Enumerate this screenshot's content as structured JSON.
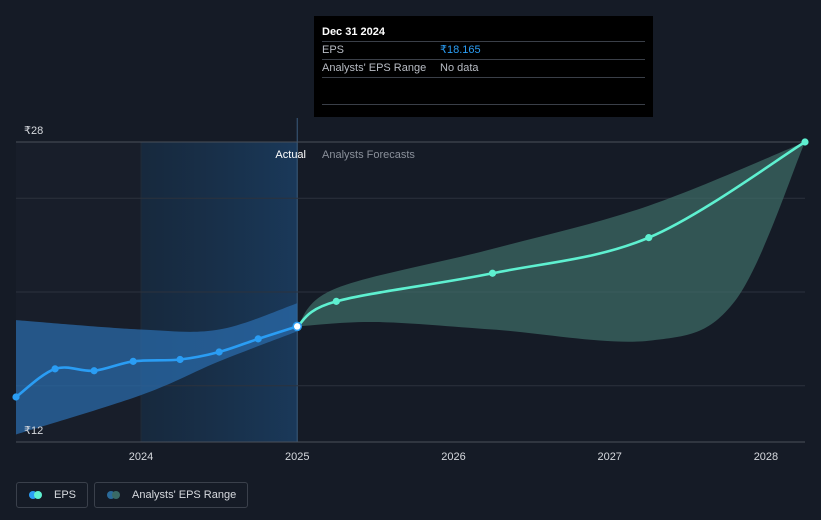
{
  "tooltip": {
    "date": "Dec 31 2024",
    "rows": [
      {
        "label": "EPS",
        "value": "₹18.165"
      },
      {
        "label": "Analysts' EPS Range",
        "value": "No data"
      }
    ]
  },
  "sections": {
    "actual": "Actual",
    "forecast": "Analysts Forecasts"
  },
  "legend": [
    {
      "label": "EPS",
      "colors": [
        "#2a9df4",
        "#5ef0d0"
      ]
    },
    {
      "label": "Analysts' EPS Range",
      "colors": [
        "#2a6a9a",
        "#3a6a66"
      ]
    }
  ],
  "colors": {
    "actual_line": "#2a9df4",
    "forecast_line": "#5ef0d0",
    "actual_range": "#2a6aa8",
    "forecast_range": "#3e6e68",
    "background": "#151b26"
  },
  "chart_data": {
    "type": "line",
    "ylim": [
      12,
      28
    ],
    "xlim": [
      2023.2,
      2028.25
    ],
    "y_ticks": [
      {
        "value": 28,
        "label": "₹28"
      },
      {
        "value": 12,
        "label": "₹12"
      }
    ],
    "y_gridlines": [
      28,
      25,
      20,
      15
    ],
    "x_ticks": [
      {
        "value": 2024,
        "label": "2024"
      },
      {
        "value": 2025,
        "label": "2025"
      },
      {
        "value": 2026,
        "label": "2026"
      },
      {
        "value": 2027,
        "label": "2027"
      },
      {
        "value": 2028,
        "label": "2028"
      }
    ],
    "divider_x": 2025,
    "highlight_range": [
      2024,
      2025
    ],
    "series": [
      {
        "role": "actual",
        "points": [
          [
            2023.2,
            14.4
          ],
          [
            2023.45,
            15.9
          ],
          [
            2023.7,
            15.8
          ],
          [
            2023.95,
            16.3
          ],
          [
            2024.25,
            16.4
          ],
          [
            2024.5,
            16.8
          ],
          [
            2024.75,
            17.5
          ],
          [
            2025.0,
            18.165
          ]
        ]
      },
      {
        "role": "forecast",
        "points": [
          [
            2025.0,
            18.165
          ],
          [
            2025.25,
            19.5
          ],
          [
            2026.25,
            21.0
          ],
          [
            2027.25,
            22.9
          ],
          [
            2028.25,
            28.0
          ]
        ]
      }
    ],
    "ranges": [
      {
        "role": "actual",
        "upper": [
          [
            2023.2,
            18.5
          ],
          [
            2024.0,
            18.0
          ],
          [
            2024.5,
            18.0
          ],
          [
            2025.0,
            19.4
          ]
        ],
        "lower": [
          [
            2023.2,
            12.4
          ],
          [
            2024.0,
            14.5
          ],
          [
            2024.5,
            16.3
          ],
          [
            2025.0,
            17.9
          ]
        ]
      },
      {
        "role": "forecast",
        "upper": [
          [
            2025.0,
            18.165
          ],
          [
            2025.25,
            20.2
          ],
          [
            2026.25,
            22.3
          ],
          [
            2027.25,
            24.6
          ],
          [
            2028.25,
            28.0
          ]
        ],
        "lower": [
          [
            2025.0,
            18.165
          ],
          [
            2025.5,
            18.4
          ],
          [
            2026.25,
            18.0
          ],
          [
            2027.25,
            17.4
          ],
          [
            2027.8,
            19.5
          ],
          [
            2028.25,
            28.0
          ]
        ]
      }
    ]
  }
}
